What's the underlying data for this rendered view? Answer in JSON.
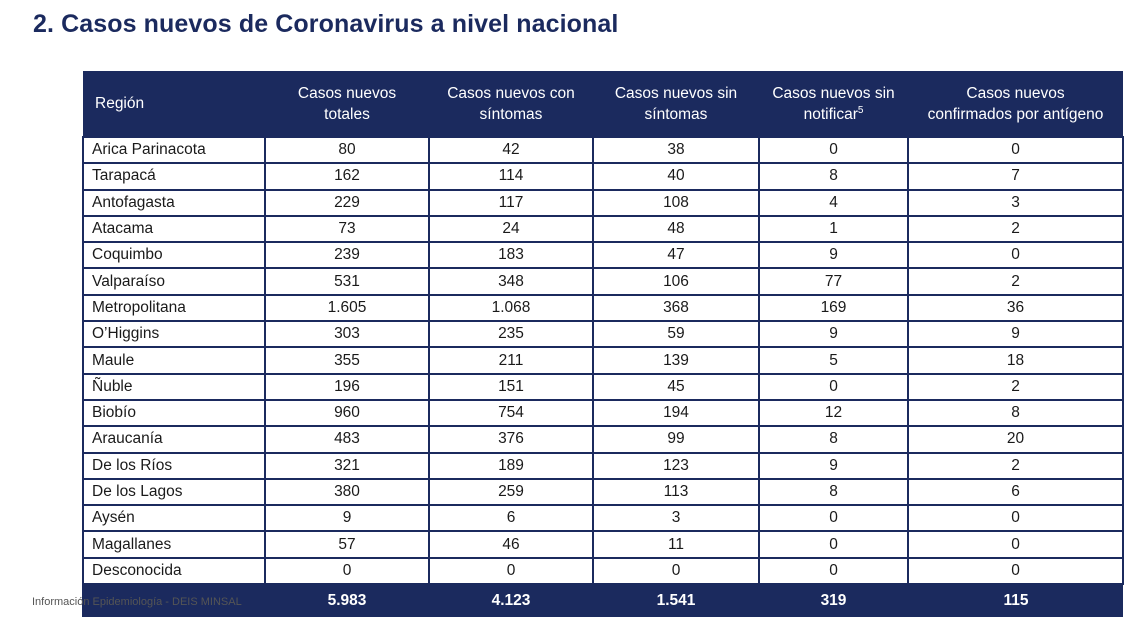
{
  "title": "2. Casos nuevos de Coronavirus a nivel nacional",
  "table": {
    "headers": [
      {
        "line1": "Región",
        "line2": ""
      },
      {
        "line1": "Casos nuevos",
        "line2": "totales"
      },
      {
        "line1": "Casos nuevos con",
        "line2": "síntomas"
      },
      {
        "line1": "Casos nuevos sin",
        "line2": "síntomas"
      },
      {
        "line1": "Casos nuevos sin",
        "line2": "notificar",
        "sup": "5"
      },
      {
        "line1": "Casos nuevos",
        "line2": "confirmados por antígeno"
      }
    ],
    "rows": [
      [
        "Arica Parinacota",
        "80",
        "42",
        "38",
        "0",
        "0"
      ],
      [
        "Tarapacá",
        "162",
        "114",
        "40",
        "8",
        "7"
      ],
      [
        "Antofagasta",
        "229",
        "117",
        "108",
        "4",
        "3"
      ],
      [
        "Atacama",
        "73",
        "24",
        "48",
        "1",
        "2"
      ],
      [
        "Coquimbo",
        "239",
        "183",
        "47",
        "9",
        "0"
      ],
      [
        "Valparaíso",
        "531",
        "348",
        "106",
        "77",
        "2"
      ],
      [
        "Metropolitana",
        "1.605",
        "1.068",
        "368",
        "169",
        "36"
      ],
      [
        "O’Higgins",
        "303",
        "235",
        "59",
        "9",
        "9"
      ],
      [
        "Maule",
        "355",
        "211",
        "139",
        "5",
        "18"
      ],
      [
        "Ñuble",
        "196",
        "151",
        "45",
        "0",
        "2"
      ],
      [
        "Biobío",
        "960",
        "754",
        "194",
        "12",
        "8"
      ],
      [
        "Araucanía",
        "483",
        "376",
        "99",
        "8",
        "20"
      ],
      [
        "De los Ríos",
        "321",
        "189",
        "123",
        "9",
        "2"
      ],
      [
        "De los Lagos",
        "380",
        "259",
        "113",
        "8",
        "6"
      ],
      [
        "Aysén",
        "9",
        "6",
        "3",
        "0",
        "0"
      ],
      [
        "Magallanes",
        "57",
        "46",
        "11",
        "0",
        "0"
      ],
      [
        "Desconocida",
        "0",
        "0",
        "0",
        "0",
        "0"
      ]
    ],
    "totals": [
      "",
      "5.983",
      "4.123",
      "1.541",
      "319",
      "115"
    ]
  },
  "footnote": "Información Epidemiología - DEIS MINSAL"
}
